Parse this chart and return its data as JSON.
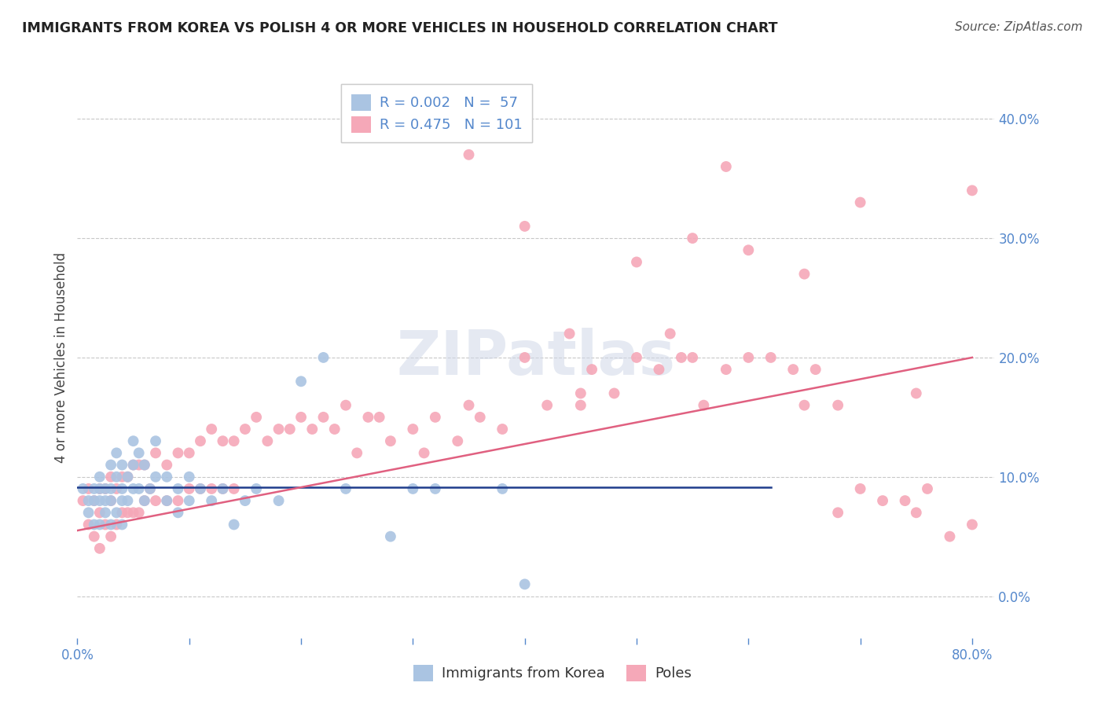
{
  "title": "IMMIGRANTS FROM KOREA VS POLISH 4 OR MORE VEHICLES IN HOUSEHOLD CORRELATION CHART",
  "source": "Source: ZipAtlas.com",
  "ylabel": "4 or more Vehicles in Household",
  "xlim": [
    0.0,
    0.82
  ],
  "ylim": [
    -0.035,
    0.435
  ],
  "xticks": [
    0.0,
    0.1,
    0.2,
    0.3,
    0.4,
    0.5,
    0.6,
    0.7,
    0.8
  ],
  "xticklabels": [
    "0.0%",
    "",
    "",
    "",
    "",
    "",
    "",
    "",
    "80.0%"
  ],
  "yticks_right": [
    0.0,
    0.1,
    0.2,
    0.3,
    0.4
  ],
  "yticklabels_right": [
    "0.0%",
    "10.0%",
    "20.0%",
    "30.0%",
    "40.0%"
  ],
  "korea_R": 0.002,
  "korea_N": 57,
  "poles_R": 0.475,
  "poles_N": 101,
  "korea_color": "#aac4e2",
  "poles_color": "#f5a8b8",
  "korea_line_color": "#1f3d8c",
  "poles_line_color": "#e06080",
  "legend_korea_label": "Immigrants from Korea",
  "legend_poles_label": "Poles",
  "background_color": "#ffffff",
  "grid_color": "#c8c8c8",
  "tick_color": "#5588cc",
  "watermark": "ZIPatlas",
  "korea_x": [
    0.005,
    0.01,
    0.01,
    0.015,
    0.015,
    0.015,
    0.02,
    0.02,
    0.02,
    0.02,
    0.025,
    0.025,
    0.025,
    0.03,
    0.03,
    0.03,
    0.03,
    0.035,
    0.035,
    0.035,
    0.04,
    0.04,
    0.04,
    0.04,
    0.045,
    0.045,
    0.05,
    0.05,
    0.05,
    0.055,
    0.055,
    0.06,
    0.06,
    0.065,
    0.07,
    0.07,
    0.08,
    0.08,
    0.09,
    0.09,
    0.1,
    0.1,
    0.11,
    0.12,
    0.13,
    0.14,
    0.15,
    0.16,
    0.18,
    0.2,
    0.22,
    0.24,
    0.28,
    0.3,
    0.32,
    0.38,
    0.4
  ],
  "korea_y": [
    0.09,
    0.08,
    0.07,
    0.09,
    0.08,
    0.06,
    0.1,
    0.09,
    0.08,
    0.06,
    0.09,
    0.08,
    0.07,
    0.11,
    0.09,
    0.08,
    0.06,
    0.12,
    0.1,
    0.07,
    0.11,
    0.09,
    0.08,
    0.06,
    0.1,
    0.08,
    0.13,
    0.11,
    0.09,
    0.12,
    0.09,
    0.11,
    0.08,
    0.09,
    0.13,
    0.1,
    0.1,
    0.08,
    0.09,
    0.07,
    0.1,
    0.08,
    0.09,
    0.08,
    0.09,
    0.06,
    0.08,
    0.09,
    0.08,
    0.18,
    0.2,
    0.09,
    0.05,
    0.09,
    0.09,
    0.09,
    0.01
  ],
  "poles_x": [
    0.005,
    0.01,
    0.01,
    0.015,
    0.015,
    0.02,
    0.02,
    0.02,
    0.025,
    0.025,
    0.03,
    0.03,
    0.03,
    0.035,
    0.035,
    0.04,
    0.04,
    0.045,
    0.045,
    0.05,
    0.05,
    0.055,
    0.055,
    0.06,
    0.06,
    0.065,
    0.07,
    0.07,
    0.08,
    0.08,
    0.09,
    0.09,
    0.1,
    0.1,
    0.11,
    0.11,
    0.12,
    0.12,
    0.13,
    0.13,
    0.14,
    0.14,
    0.15,
    0.16,
    0.17,
    0.18,
    0.19,
    0.2,
    0.21,
    0.22,
    0.23,
    0.24,
    0.25,
    0.26,
    0.27,
    0.28,
    0.3,
    0.31,
    0.32,
    0.34,
    0.35,
    0.36,
    0.38,
    0.4,
    0.42,
    0.44,
    0.45,
    0.46,
    0.48,
    0.5,
    0.52,
    0.53,
    0.54,
    0.55,
    0.56,
    0.58,
    0.6,
    0.62,
    0.64,
    0.65,
    0.66,
    0.68,
    0.7,
    0.72,
    0.74,
    0.75,
    0.76,
    0.78,
    0.8,
    0.6,
    0.65,
    0.5,
    0.55,
    0.68,
    0.58,
    0.7,
    0.75,
    0.8,
    0.45,
    0.4,
    0.35
  ],
  "poles_y": [
    0.08,
    0.09,
    0.06,
    0.08,
    0.05,
    0.09,
    0.07,
    0.04,
    0.09,
    0.06,
    0.1,
    0.08,
    0.05,
    0.09,
    0.06,
    0.1,
    0.07,
    0.1,
    0.07,
    0.11,
    0.07,
    0.11,
    0.07,
    0.11,
    0.08,
    0.09,
    0.12,
    0.08,
    0.11,
    0.08,
    0.12,
    0.08,
    0.12,
    0.09,
    0.13,
    0.09,
    0.14,
    0.09,
    0.13,
    0.09,
    0.13,
    0.09,
    0.14,
    0.15,
    0.13,
    0.14,
    0.14,
    0.15,
    0.14,
    0.15,
    0.14,
    0.16,
    0.12,
    0.15,
    0.15,
    0.13,
    0.14,
    0.12,
    0.15,
    0.13,
    0.16,
    0.15,
    0.14,
    0.2,
    0.16,
    0.22,
    0.17,
    0.19,
    0.17,
    0.2,
    0.19,
    0.22,
    0.2,
    0.2,
    0.16,
    0.19,
    0.2,
    0.2,
    0.19,
    0.16,
    0.19,
    0.07,
    0.09,
    0.08,
    0.08,
    0.17,
    0.09,
    0.05,
    0.06,
    0.29,
    0.27,
    0.28,
    0.3,
    0.16,
    0.36,
    0.33,
    0.07,
    0.34,
    0.16,
    0.31,
    0.37
  ]
}
